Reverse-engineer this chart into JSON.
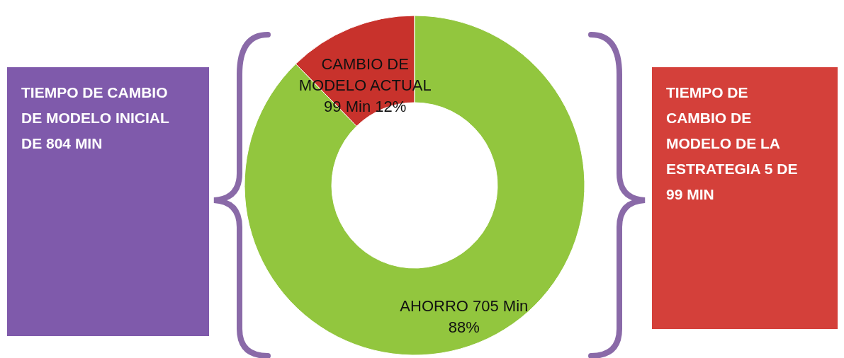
{
  "chart_data": {
    "type": "donut",
    "categories": [
      "CAMBIO DE MODELO ACTUAL",
      "AHORRO"
    ],
    "values": [
      99,
      705
    ],
    "colors": [
      "#c8322c",
      "#92c63e"
    ],
    "value_labels": [
      "99 Min 12%",
      "705 Min 88%"
    ],
    "annotations": [
      "TIEMPO DE CAMBIO DE MODELO INICIAL DE 804 MIN",
      "TIEMPO DE CAMBIO DE MODELO DE LA ESTRATEGIA 5 DE 99 MIN"
    ]
  }
}
